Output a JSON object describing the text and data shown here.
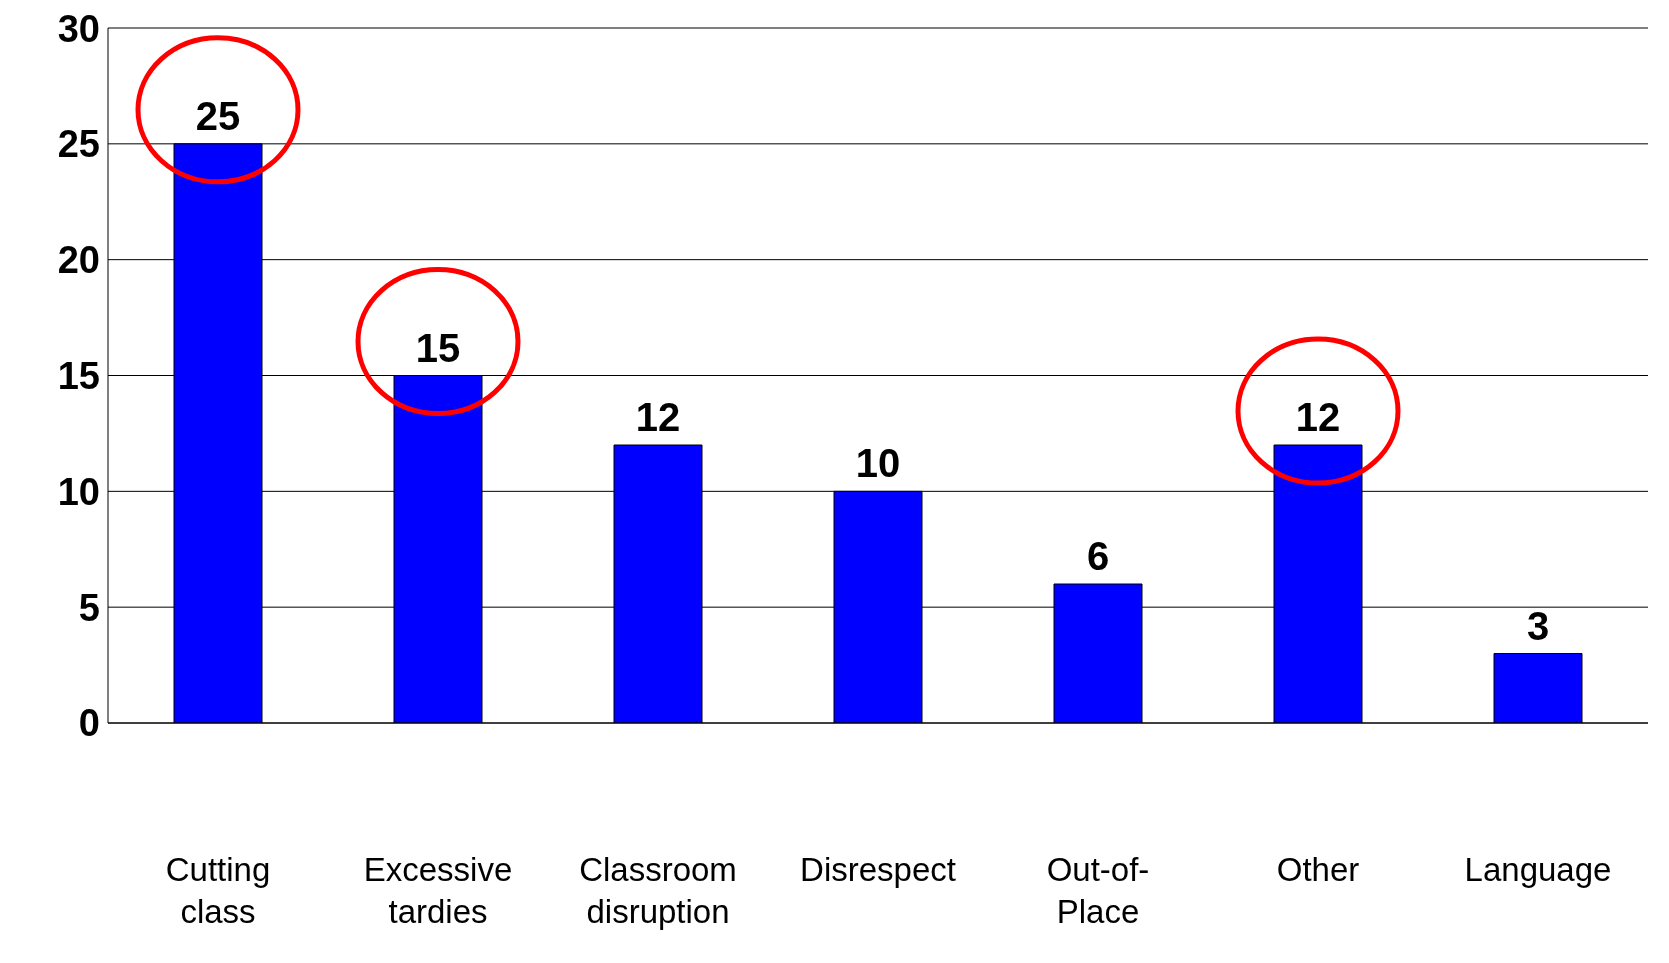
{
  "chart_data": {
    "type": "bar",
    "categories": [
      "Cutting class",
      "Excessive tardies",
      "Classroom disruption",
      "Disrespect",
      "Out-of-Place",
      "Other",
      "Language"
    ],
    "values": [
      25,
      15,
      12,
      10,
      6,
      12,
      3
    ],
    "color": "#0000ff",
    "ylim": [
      0,
      30
    ],
    "yticks": [
      0,
      5,
      10,
      15,
      20,
      25,
      30
    ],
    "grid": "y",
    "data_labels": true
  }
}
